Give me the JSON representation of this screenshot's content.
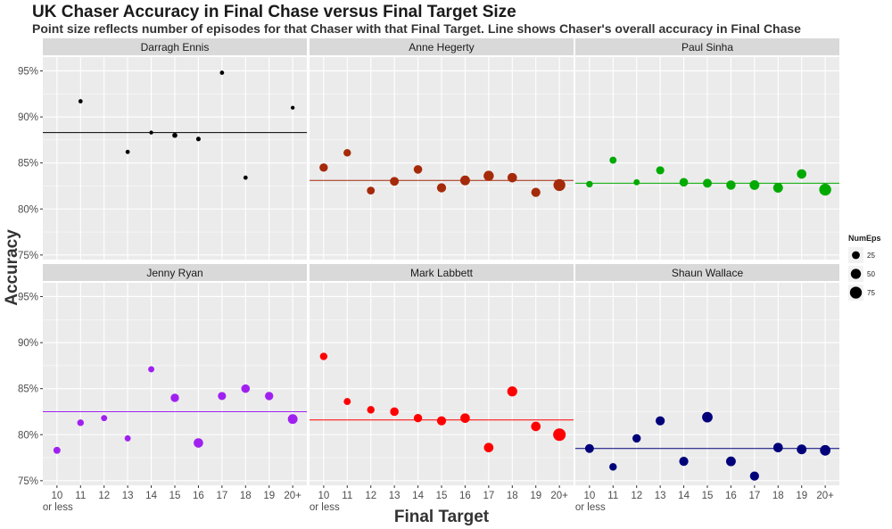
{
  "chart_data": {
    "type": "scatter",
    "title": "UK Chaser Accuracy in Final Chase versus Final Target Size",
    "subtitle": "Point size reflects number of episodes for that Chaser with that Final Target. Line shows Chaser's overall accuracy in Final Chase",
    "xlabel": "Final Target",
    "ylabel": "Accuracy",
    "x_categories": [
      "10\nor less",
      "11",
      "12",
      "13",
      "14",
      "15",
      "16",
      "17",
      "18",
      "19",
      "20+"
    ],
    "y_ticks": [
      "75%",
      "80%",
      "85%",
      "90%",
      "95%"
    ],
    "ylim": [
      74.5,
      96.5
    ],
    "grid": true,
    "legend": {
      "title": "NumEps",
      "position": "right",
      "entries": [
        "25",
        "50",
        "75"
      ],
      "values": [
        25,
        50,
        75
      ]
    },
    "series": [
      {
        "name": "Darragh Ennis",
        "color": "#000000",
        "overall": 88.3,
        "points": [
          {
            "x": "11",
            "y": 91.7,
            "n": 3
          },
          {
            "x": "13",
            "y": 86.2,
            "n": 3
          },
          {
            "x": "14",
            "y": 88.3,
            "n": 2
          },
          {
            "x": "15",
            "y": 88.0,
            "n": 6
          },
          {
            "x": "16",
            "y": 87.6,
            "n": 4
          },
          {
            "x": "17",
            "y": 94.8,
            "n": 3
          },
          {
            "x": "18",
            "y": 83.4,
            "n": 3
          },
          {
            "x": "20+",
            "y": 91.0,
            "n": 2
          }
        ]
      },
      {
        "name": "Anne Hegerty",
        "color": "#A52A0A",
        "overall": 83.1,
        "points": [
          {
            "x": "10\nor less",
            "y": 84.5,
            "n": 30
          },
          {
            "x": "11",
            "y": 86.1,
            "n": 22
          },
          {
            "x": "12",
            "y": 82.0,
            "n": 25
          },
          {
            "x": "13",
            "y": 83.0,
            "n": 35
          },
          {
            "x": "14",
            "y": 84.3,
            "n": 32
          },
          {
            "x": "15",
            "y": 82.3,
            "n": 38
          },
          {
            "x": "16",
            "y": 83.1,
            "n": 45
          },
          {
            "x": "17",
            "y": 83.6,
            "n": 50
          },
          {
            "x": "18",
            "y": 83.4,
            "n": 42
          },
          {
            "x": "19",
            "y": 81.8,
            "n": 38
          },
          {
            "x": "20+",
            "y": 82.6,
            "n": 75
          }
        ]
      },
      {
        "name": "Paul Sinha",
        "color": "#00AA00",
        "overall": 82.8,
        "points": [
          {
            "x": "10\nor less",
            "y": 82.7,
            "n": 15
          },
          {
            "x": "11",
            "y": 85.3,
            "n": 18
          },
          {
            "x": "12",
            "y": 82.9,
            "n": 12
          },
          {
            "x": "13",
            "y": 84.2,
            "n": 28
          },
          {
            "x": "14",
            "y": 82.9,
            "n": 32
          },
          {
            "x": "15",
            "y": 82.8,
            "n": 35
          },
          {
            "x": "16",
            "y": 82.6,
            "n": 40
          },
          {
            "x": "17",
            "y": 82.6,
            "n": 45
          },
          {
            "x": "18",
            "y": 82.3,
            "n": 45
          },
          {
            "x": "19",
            "y": 83.8,
            "n": 42
          },
          {
            "x": "20+",
            "y": 82.1,
            "n": 75
          }
        ]
      },
      {
        "name": "Jenny Ryan",
        "color": "#A020F0",
        "overall": 82.5,
        "points": [
          {
            "x": "10\nor less",
            "y": 78.3,
            "n": 18
          },
          {
            "x": "11",
            "y": 81.3,
            "n": 15
          },
          {
            "x": "12",
            "y": 81.8,
            "n": 12
          },
          {
            "x": "13",
            "y": 79.6,
            "n": 12
          },
          {
            "x": "14",
            "y": 87.1,
            "n": 12
          },
          {
            "x": "15",
            "y": 84.0,
            "n": 30
          },
          {
            "x": "16",
            "y": 79.1,
            "n": 42
          },
          {
            "x": "17",
            "y": 84.2,
            "n": 28
          },
          {
            "x": "18",
            "y": 85.0,
            "n": 32
          },
          {
            "x": "19",
            "y": 84.2,
            "n": 30
          },
          {
            "x": "20+",
            "y": 81.7,
            "n": 45
          }
        ]
      },
      {
        "name": "Mark Labbett",
        "color": "#FF0000",
        "overall": 81.6,
        "points": [
          {
            "x": "10\nor less",
            "y": 88.5,
            "n": 22
          },
          {
            "x": "11",
            "y": 83.6,
            "n": 18
          },
          {
            "x": "12",
            "y": 82.7,
            "n": 22
          },
          {
            "x": "13",
            "y": 82.5,
            "n": 32
          },
          {
            "x": "14",
            "y": 81.8,
            "n": 30
          },
          {
            "x": "15",
            "y": 81.5,
            "n": 38
          },
          {
            "x": "16",
            "y": 81.8,
            "n": 42
          },
          {
            "x": "17",
            "y": 78.6,
            "n": 42
          },
          {
            "x": "18",
            "y": 84.7,
            "n": 48
          },
          {
            "x": "19",
            "y": 80.9,
            "n": 42
          },
          {
            "x": "20+",
            "y": 80.0,
            "n": 85
          }
        ]
      },
      {
        "name": "Shaun Wallace",
        "color": "#00007A",
        "overall": 78.5,
        "points": [
          {
            "x": "10\nor less",
            "y": 78.5,
            "n": 35
          },
          {
            "x": "11",
            "y": 76.5,
            "n": 22
          },
          {
            "x": "12",
            "y": 79.6,
            "n": 30
          },
          {
            "x": "13",
            "y": 81.5,
            "n": 38
          },
          {
            "x": "14",
            "y": 77.1,
            "n": 38
          },
          {
            "x": "15",
            "y": 81.9,
            "n": 55
          },
          {
            "x": "16",
            "y": 77.1,
            "n": 45
          },
          {
            "x": "17",
            "y": 75.5,
            "n": 38
          },
          {
            "x": "18",
            "y": 78.6,
            "n": 42
          },
          {
            "x": "19",
            "y": 78.4,
            "n": 45
          },
          {
            "x": "20+",
            "y": 78.3,
            "n": 55
          }
        ]
      }
    ]
  }
}
